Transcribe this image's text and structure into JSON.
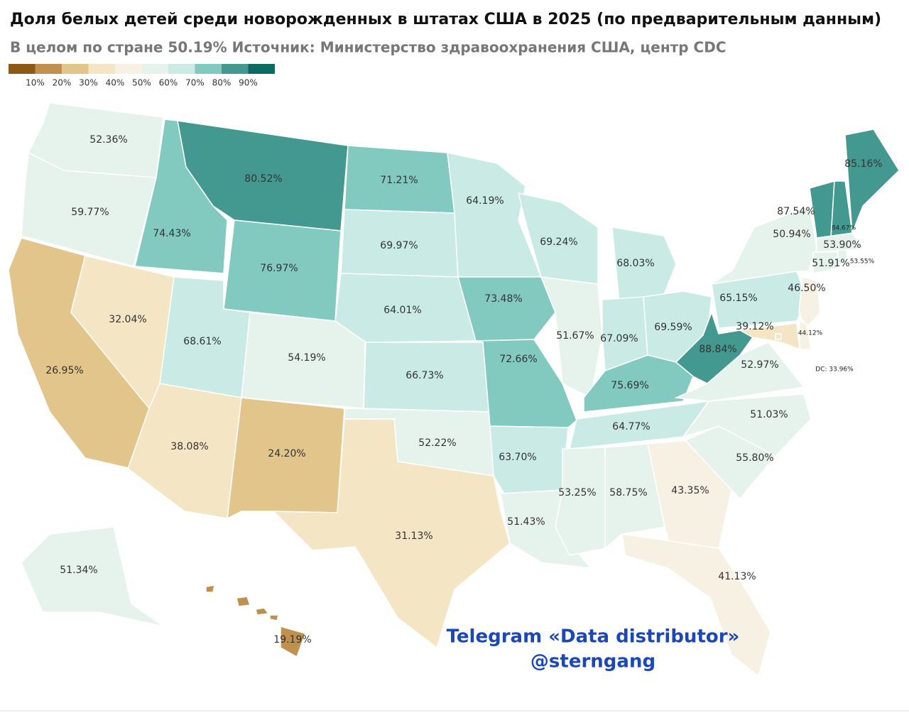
{
  "chart_data": {
    "type": "choropleth",
    "title": "Доля белых детей среди новорожденных в штатах США в 2025 (по предварительным данным)",
    "subtitle": "В целом по стране 50.19% Источник: Министерство здравоохранения США, центр CDC",
    "legend": {
      "clim": [
        0,
        100
      ],
      "colors": [
        "#8c5a14",
        "#c0904f",
        "#e2c58a",
        "#f4e6c4",
        "#f6f1e2",
        "#e6f3ec",
        "#c9eae5",
        "#82c9c0",
        "#43998f",
        "#0b6b60"
      ],
      "ticks": [
        {
          "value": 10,
          "label": "10%"
        },
        {
          "value": 20,
          "label": "20%"
        },
        {
          "value": 30,
          "label": "30%"
        },
        {
          "value": 40,
          "label": "40%"
        },
        {
          "value": 50,
          "label": "50%"
        },
        {
          "value": 60,
          "label": "60%"
        },
        {
          "value": 70,
          "label": "70%"
        },
        {
          "value": 80,
          "label": "80%"
        },
        {
          "value": 90,
          "label": "90%"
        }
      ]
    },
    "values": [
      52.36,
      59.77,
      26.95,
      32.04,
      74.43,
      80.52,
      76.97,
      68.61,
      38.08,
      54.19,
      24.2,
      71.21,
      69.97,
      64.01,
      66.73,
      52.22,
      31.13,
      64.19,
      73.48,
      72.66,
      63.7,
      51.43,
      69.24,
      51.67,
      68.03,
      67.09,
      69.59,
      75.69,
      64.77,
      53.25,
      58.75,
      43.35,
      41.13,
      55.8,
      51.03,
      52.97,
      88.84,
      65.15,
      50.94,
      87.54,
      84.67,
      85.16,
      53.9,
      51.91,
      53.55,
      46.5,
      39.12,
      44.12,
      33.96,
      51.34,
      19.19
    ],
    "value_labels": [
      "52.36%",
      "59.77%",
      "26.95%",
      "32.04%",
      "74.43%",
      "80.52%",
      "76.97%",
      "68.61%",
      "38.08%",
      "54.19%",
      "24.20%",
      "71.21%",
      "69.97%",
      "64.01%",
      "66.73%",
      "52.22%",
      "31.13%",
      "64.19%",
      "73.48%",
      "72.66%",
      "63.70%",
      "51.43%",
      "69.24%",
      "51.67%",
      "68.03%",
      "67.09%",
      "69.59%",
      "75.69%",
      "64.77%",
      "53.25%",
      "58.75%",
      "43.35%",
      "41.13%",
      "55.80%",
      "51.03%",
      "52.97%",
      "88.84%",
      "65.15%",
      "50.94%",
      "87.54%",
      "84.67%",
      "85.16%",
      "53.90%",
      "51.91%",
      "53.55%",
      "46.50%",
      "39.12%",
      "44.12%",
      "DC: 33.96%",
      "51.34%",
      "19.19%"
    ],
    "watermark": [
      "Telegram «Data distributor»",
      "@sterngang"
    ]
  }
}
